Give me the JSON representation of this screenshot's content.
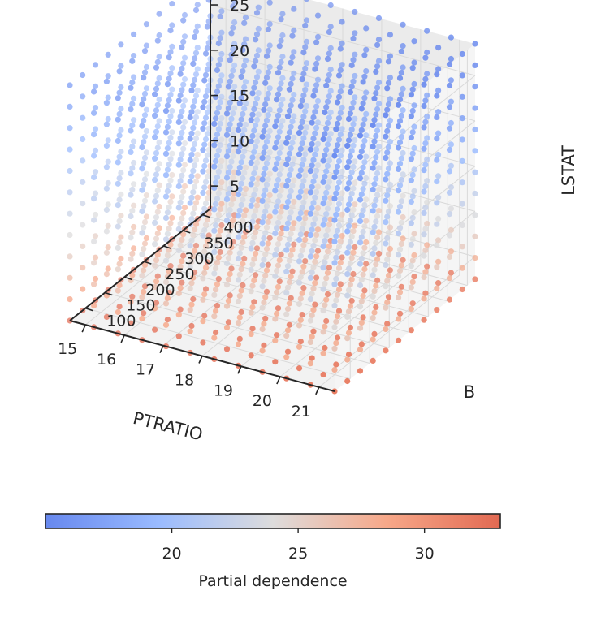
{
  "chart_data": {
    "type": "scatter3d",
    "title": "",
    "x_axis": {
      "label": "PTRATIO",
      "ticks": [
        15,
        16,
        17,
        18,
        19,
        20,
        21
      ],
      "range": [
        14.6,
        21.4
      ]
    },
    "y_axis": {
      "label": "B",
      "ticks": [
        100,
        150,
        200,
        250,
        300,
        350,
        400
      ],
      "range": [
        60,
        420
      ]
    },
    "z_axis": {
      "label": "LSTAT",
      "ticks": [
        5,
        10,
        15,
        20,
        25
      ],
      "range": [
        2.5,
        28.5
      ]
    },
    "grid": {
      "ptratio_range": [
        14.6,
        21.4
      ],
      "b_range": [
        60,
        420
      ],
      "lstat_range": [
        2.5,
        28.5
      ],
      "n": 12
    },
    "colorbar": {
      "label": "Partial dependence",
      "ticks": [
        20,
        25,
        30
      ],
      "range": [
        15.0,
        33.0
      ],
      "cmap": [
        "#6788ee",
        "#dddcdc",
        "#e26952"
      ]
    }
  }
}
